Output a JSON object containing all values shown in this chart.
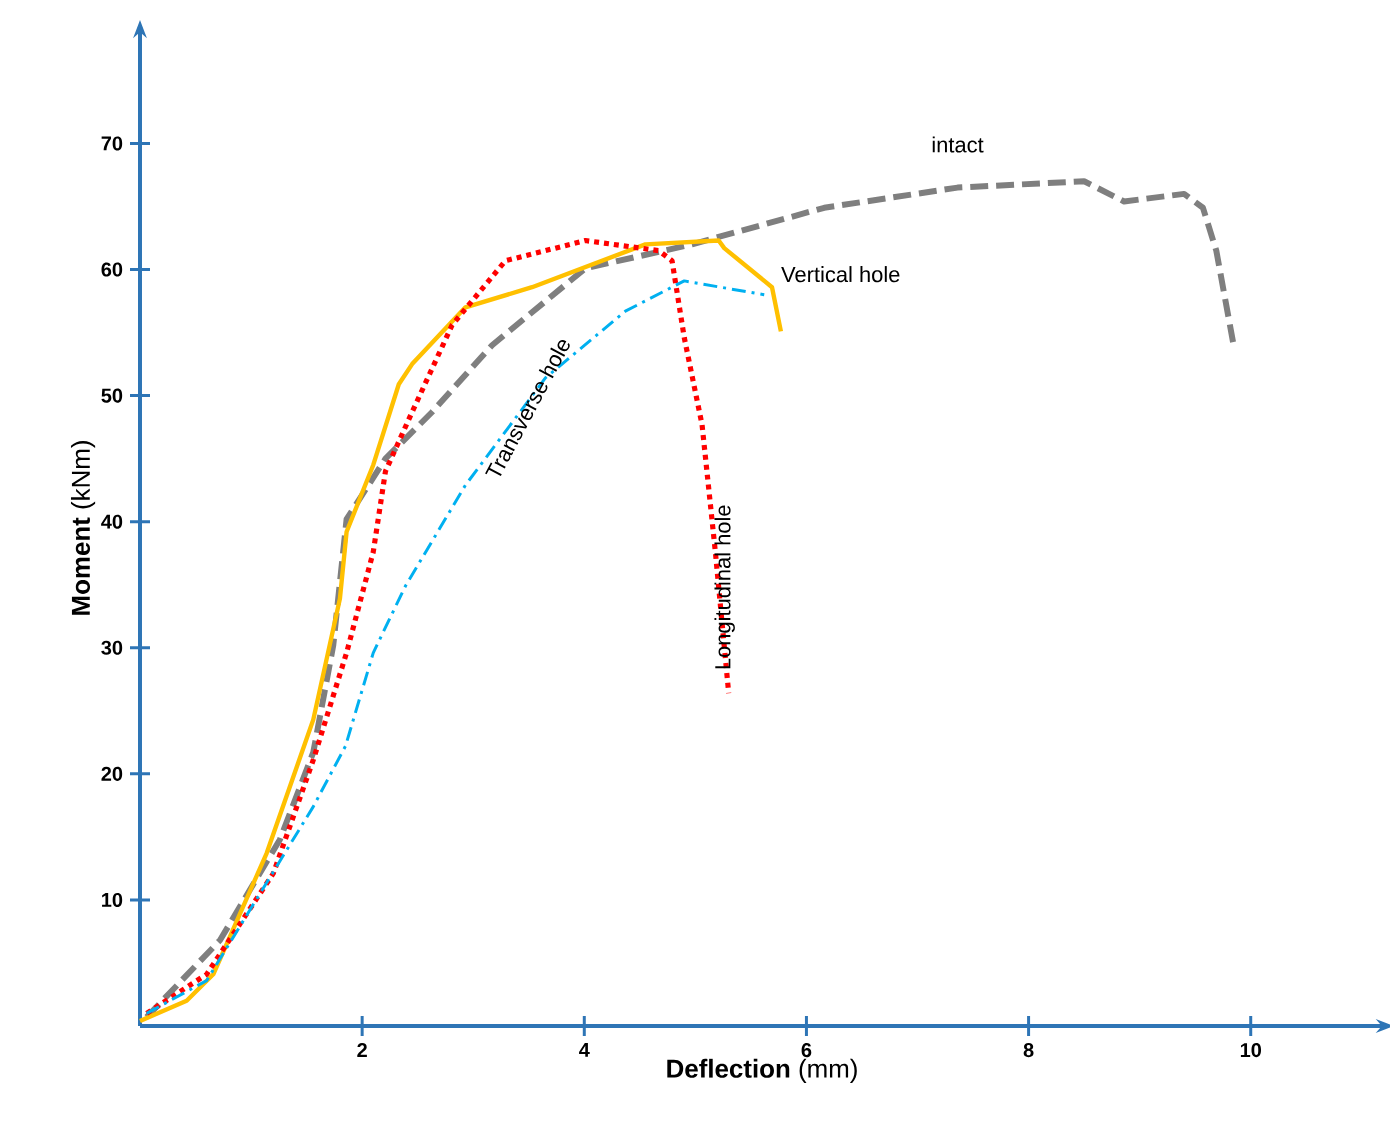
{
  "chart_data": {
    "type": "line",
    "xlabel": "**Deflection** (mm)",
    "ylabel": "**Moment** (kNm)",
    "xlim": [
      0,
      11.2
    ],
    "ylim": [
      0,
      79
    ],
    "xticks": [
      2,
      4,
      6,
      8,
      10
    ],
    "yticks": [
      10,
      20,
      30,
      40,
      50,
      60,
      70
    ],
    "series": [
      {
        "name": "intact",
        "color": "#7f7f7f",
        "line_style": "dashed",
        "x": [
          0.06,
          0.72,
          1.26,
          1.56,
          1.74,
          1.86,
          2.21,
          2.63,
          3.17,
          4.01,
          4.97,
          6.16,
          7.36,
          8.5,
          8.86,
          9.4,
          9.57,
          9.69,
          9.85
        ],
        "values": [
          0.7,
          6.8,
          14.8,
          21.7,
          30.2,
          40.2,
          45,
          48.7,
          54,
          60.1,
          62,
          64.9,
          66.5,
          67,
          65.4,
          66,
          64.9,
          61.5,
          53.8
        ]
      },
      {
        "name": "Vertical hole",
        "color": "#ffc000",
        "line_style": "solid",
        "x": [
          0,
          0.42,
          0.66,
          1.14,
          1.56,
          1.8,
          1.86,
          2.1,
          2.33,
          2.45,
          2.93,
          3.53,
          4.55,
          5.21,
          5.26,
          5.69,
          5.77
        ],
        "values": [
          0.4,
          2,
          4.1,
          13.7,
          24.3,
          33.9,
          39.2,
          44.5,
          50.9,
          52.5,
          57,
          58.6,
          62,
          62.3,
          61.7,
          58.6,
          55.1
        ]
      },
      {
        "name": "Longitudinal hole",
        "color": "#ff0000",
        "line_style": "dotted",
        "x": [
          0.06,
          0.6,
          1.2,
          1.56,
          1.86,
          2.1,
          2.21,
          2.45,
          2.81,
          3.29,
          4.01,
          4.67,
          4.79,
          4.9,
          5.06,
          5.18,
          5.3
        ],
        "values": [
          1,
          4.1,
          12.1,
          21.1,
          29.6,
          37.6,
          44,
          48.7,
          55.6,
          60.7,
          62.3,
          61.5,
          60.7,
          54.6,
          47.7,
          37.6,
          26.4
        ]
      },
      {
        "name": "Transverse hole",
        "color": "#00b0f0",
        "line_style": "dashdot",
        "x": [
          0.06,
          0.6,
          1.08,
          1.56,
          1.85,
          2.1,
          2.39,
          2.93,
          3.65,
          4.37,
          4.9,
          5.62
        ],
        "values": [
          1,
          3.6,
          10.5,
          17.4,
          22.2,
          29.6,
          34.9,
          42.9,
          51.4,
          56.7,
          59.1,
          58
        ]
      }
    ]
  }
}
